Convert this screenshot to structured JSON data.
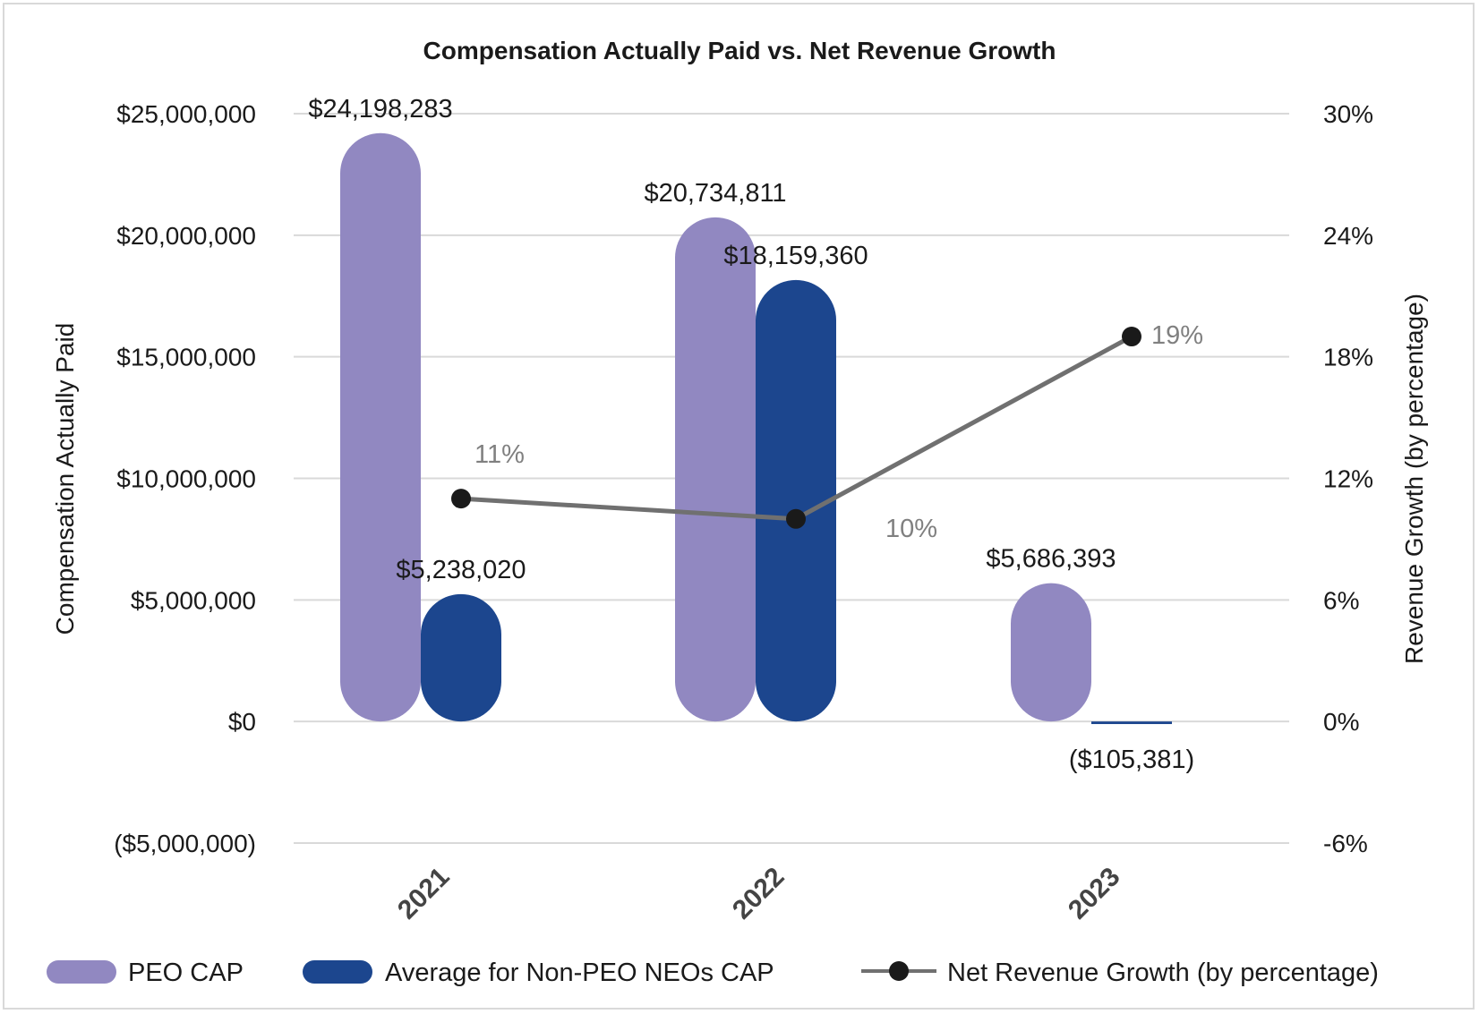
{
  "chart_data": {
    "type": "bar",
    "title": "Compensation Actually Paid vs. Net Revenue Growth",
    "categories": [
      "2021",
      "2022",
      "2023"
    ],
    "ylabel": "Compensation Actually Paid",
    "y2label": "Revenue Growth (by percentage)",
    "ylim": [
      -5000000,
      25000000
    ],
    "y2lim": [
      -6,
      30
    ],
    "yticks": [
      "($5,000,000)",
      "$0",
      "$5,000,000",
      "$10,000,000",
      "$15,000,000",
      "$20,000,000",
      "$25,000,000"
    ],
    "y2ticks": [
      "-6%",
      "0%",
      "6%",
      "12%",
      "18%",
      "24%",
      "30%"
    ],
    "grid": true,
    "legend_position": "bottom",
    "series": [
      {
        "name": "PEO CAP",
        "kind": "bar",
        "color": "#9188c1",
        "values": [
          24198283,
          20734811,
          5686393
        ],
        "labels": [
          "$24,198,283",
          "$20,734,811",
          "$5,686,393"
        ]
      },
      {
        "name": "Average for Non-PEO NEOs CAP",
        "kind": "bar",
        "color": "#1c468e",
        "values": [
          5238020,
          18159360,
          -105381
        ],
        "labels": [
          "$5,238,020",
          "$18,159,360",
          "($105,381)"
        ]
      },
      {
        "name": "Net Revenue Growth (by percentage)",
        "kind": "line",
        "axis": "secondary",
        "color": "#707070",
        "marker_color": "#1a1a1a",
        "values": [
          11,
          10,
          19
        ],
        "labels": [
          "11%",
          "10%",
          "19%"
        ]
      }
    ]
  }
}
